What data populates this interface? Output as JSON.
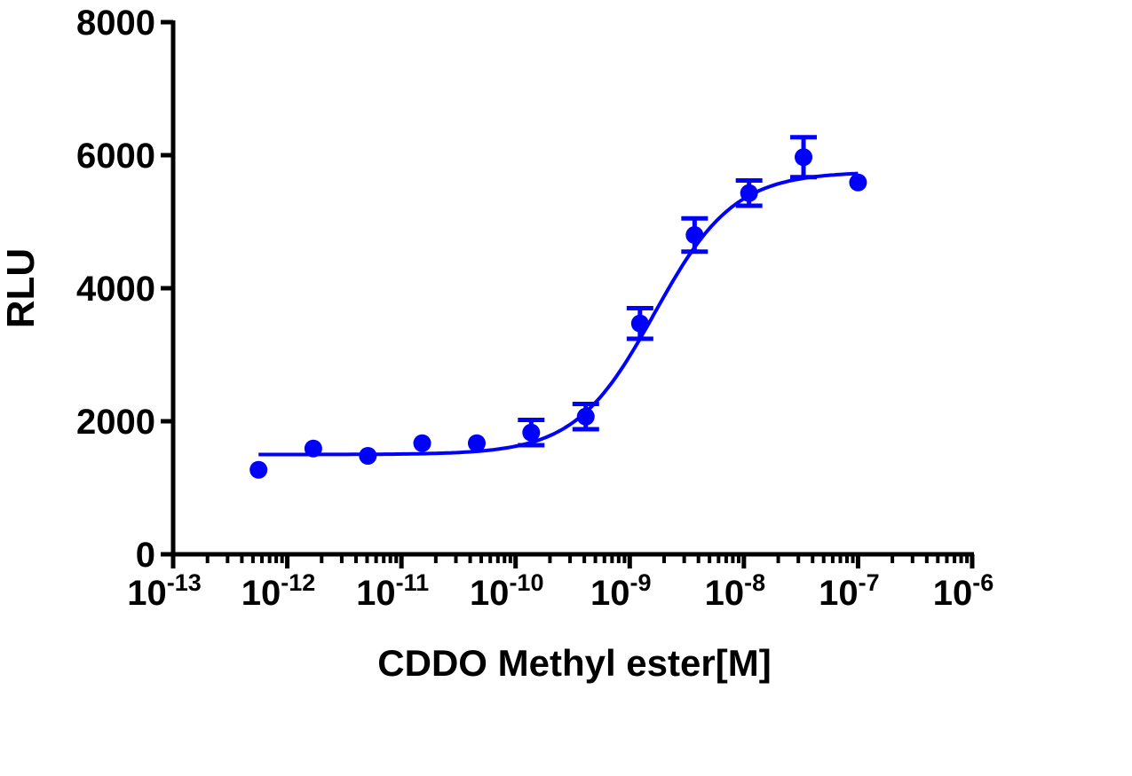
{
  "chart_data": {
    "type": "scatter",
    "title": "",
    "xlabel": "CDDO Methyl ester[M]",
    "ylabel": "RLU",
    "x_scale": "log",
    "xlim": [
      1e-13,
      1e-06
    ],
    "ylim": [
      0,
      8000
    ],
    "x_tick_labels": [
      {
        "base": "10",
        "exp": "-13"
      },
      {
        "base": "10",
        "exp": "-12"
      },
      {
        "base": "10",
        "exp": "-11"
      },
      {
        "base": "10",
        "exp": "-10"
      },
      {
        "base": "10",
        "exp": "-9"
      },
      {
        "base": "10",
        "exp": "-8"
      },
      {
        "base": "10",
        "exp": "-7"
      },
      {
        "base": "10",
        "exp": "-6"
      }
    ],
    "y_ticks": [
      "0",
      "2000",
      "4000",
      "6000",
      "8000"
    ],
    "grid": false,
    "color": "#0000ff",
    "points": [
      {
        "x": 5.6e-13,
        "y": 1270,
        "err": 0
      },
      {
        "x": 1.69e-12,
        "y": 1590,
        "err": 0
      },
      {
        "x": 5.08e-12,
        "y": 1480,
        "err": 0
      },
      {
        "x": 1.52e-11,
        "y": 1670,
        "err": 0
      },
      {
        "x": 4.57e-11,
        "y": 1670,
        "err": 0
      },
      {
        "x": 1.37e-10,
        "y": 1830,
        "err": 190
      },
      {
        "x": 4.12e-10,
        "y": 2070,
        "err": 190
      },
      {
        "x": 1.23e-09,
        "y": 3470,
        "err": 230
      },
      {
        "x": 3.7e-09,
        "y": 4800,
        "err": 250
      },
      {
        "x": 1.11e-08,
        "y": 5430,
        "err": 190
      },
      {
        "x": 3.33e-08,
        "y": 5970,
        "err": 300
      },
      {
        "x": 1e-07,
        "y": 5590,
        "err": 0
      }
    ],
    "fit": {
      "model": "sigmoidal dose-response",
      "bottom": 1500,
      "top": 5750,
      "ec50": 1.65e-09,
      "hill": 1.25
    }
  }
}
